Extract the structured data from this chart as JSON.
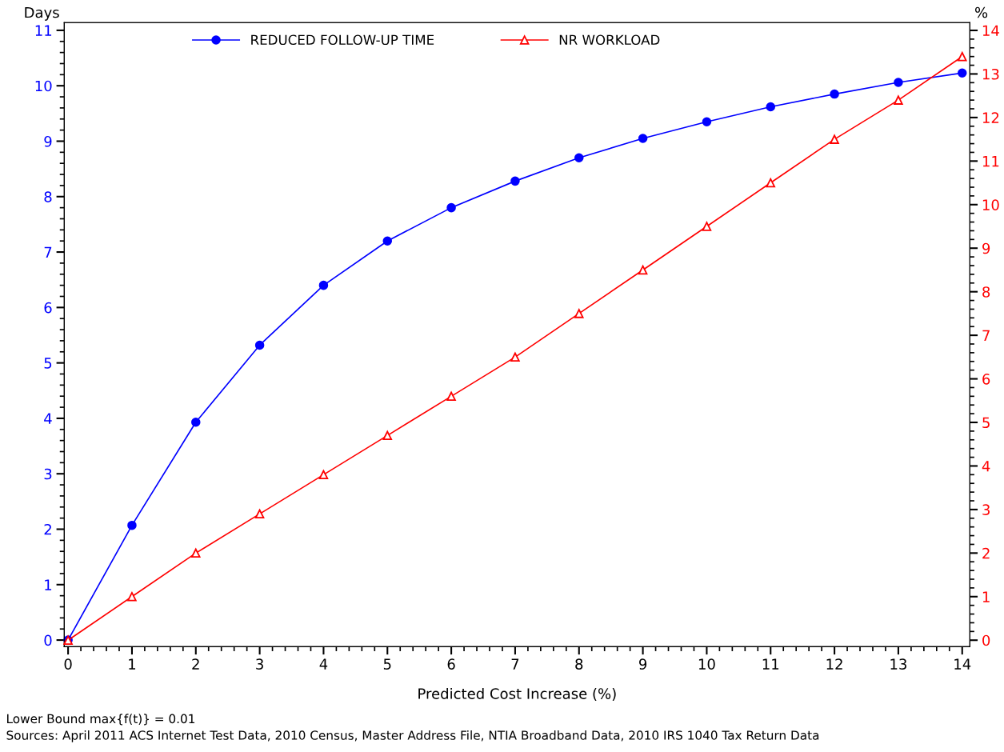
{
  "chart_data": {
    "type": "line",
    "xlabel": "Predicted Cost Increase (%)",
    "ylabel": "Days",
    "y2label": "%",
    "x": [
      0,
      1,
      2,
      3,
      4,
      5,
      6,
      7,
      8,
      9,
      10,
      11,
      12,
      13,
      14
    ],
    "series": [
      {
        "name": "REDUCED FOLLOW-UP TIME",
        "color": "#0000ff",
        "marker": "circle",
        "values": [
          0,
          2.07,
          3.93,
          5.32,
          6.4,
          7.2,
          7.8,
          8.28,
          8.7,
          9.05,
          9.35,
          9.62,
          9.85,
          10.06,
          10.23
        ]
      },
      {
        "name": "NR WORKLOAD",
        "color": "#ff0000",
        "marker": "triangle",
        "axis": "y2",
        "values": [
          0,
          1.0,
          2.0,
          2.9,
          3.8,
          4.7,
          5.6,
          6.5,
          7.5,
          8.5,
          9.5,
          10.5,
          11.5,
          12.4,
          13.4
        ]
      }
    ],
    "xlim": [
      -0.06,
      14.12
    ],
    "xticks": [
      0,
      1,
      2,
      3,
      4,
      5,
      6,
      7,
      8,
      9,
      10,
      11,
      12,
      13,
      14
    ],
    "ylim": [
      -0.12,
      11.14
    ],
    "yticks": [
      0,
      1,
      2,
      3,
      4,
      5,
      6,
      7,
      8,
      9,
      10,
      11
    ],
    "y2lim": [
      -0.15,
      14.18
    ],
    "y2ticks": [
      0,
      1,
      2,
      3,
      4,
      5,
      6,
      7,
      8,
      9,
      10,
      11,
      12,
      13,
      14
    ],
    "legend": "top",
    "grid": false,
    "line_style": "solid",
    "annotations": [
      "Lower Bound max{f(t)} = 0.01",
      "Sources: April 2011 ACS Internet Test Data, 2010 Census, Master Address File, NTIA Broadband Data, 2010 IRS 1040 Tax Return Data"
    ]
  }
}
